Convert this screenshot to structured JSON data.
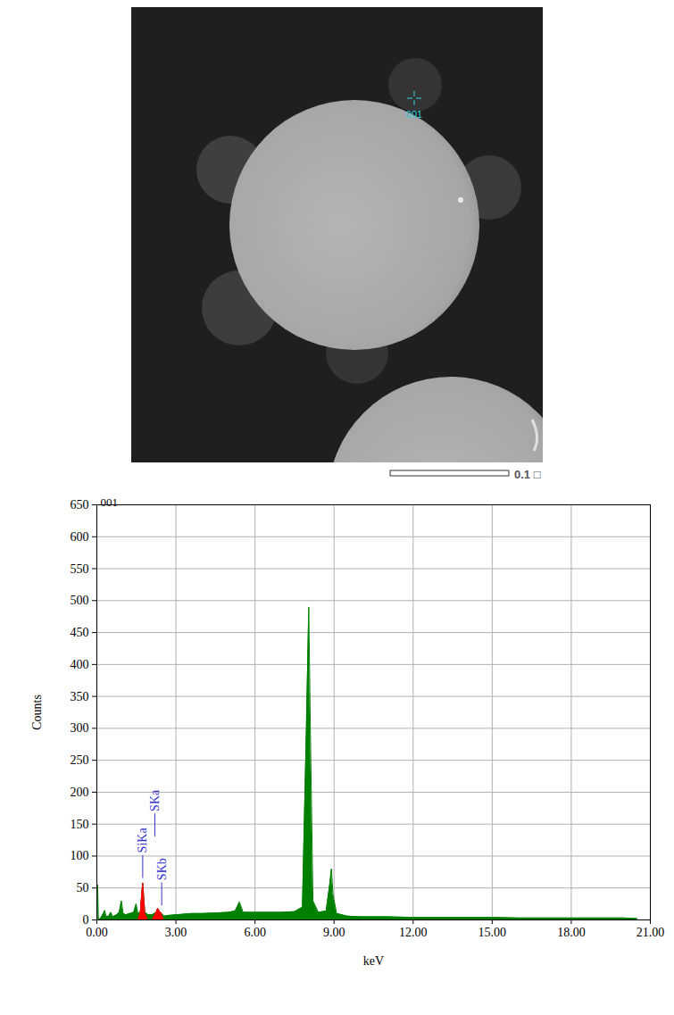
{
  "image": {
    "marker_label": "001",
    "scale_bar_label": "0.1 □"
  },
  "chart_data": {
    "type": "area",
    "title": "001",
    "x_label": "keV",
    "y_label": "Counts",
    "x": [
      0,
      0.03,
      0.06,
      0.15,
      0.25,
      0.3,
      0.35,
      0.45,
      0.53,
      0.6,
      0.75,
      0.85,
      0.93,
      1.0,
      1.1,
      1.25,
      1.4,
      1.49,
      1.56,
      1.65,
      1.74,
      1.82,
      1.95,
      2.1,
      2.25,
      2.31,
      2.4,
      2.46,
      2.55,
      2.7,
      3.0,
      3.3,
      3.6,
      4.0,
      4.5,
      5.0,
      5.25,
      5.41,
      5.55,
      6.0,
      6.5,
      7.0,
      7.5,
      7.8,
      7.95,
      8.04,
      8.1,
      8.2,
      8.4,
      8.7,
      8.85,
      8.9,
      8.96,
      9.1,
      9.5,
      10,
      11,
      12,
      13,
      14,
      15,
      16,
      17,
      18,
      19,
      20,
      20.5
    ],
    "series": [
      {
        "color": "#008000",
        "values": [
          0,
          55,
          0,
          3,
          10,
          15,
          5,
          6,
          12,
          5,
          8,
          12,
          30,
          10,
          8,
          10,
          12,
          25,
          10,
          12,
          58,
          12,
          8,
          8,
          12,
          18,
          12,
          10,
          6,
          7,
          8,
          9,
          10,
          10,
          11,
          12,
          14,
          28,
          12,
          12,
          12,
          12,
          13,
          20,
          300,
          490,
          300,
          30,
          12,
          14,
          60,
          80,
          40,
          10,
          6,
          5,
          5,
          4,
          4,
          4,
          4,
          3,
          3,
          3,
          3,
          3,
          2
        ]
      },
      {
        "color": "#ff0000",
        "values": [
          null,
          null,
          null,
          null,
          null,
          null,
          null,
          null,
          null,
          null,
          null,
          null,
          null,
          null,
          null,
          null,
          null,
          null,
          null,
          12,
          58,
          12,
          null,
          null,
          12,
          18,
          12,
          10,
          null,
          null,
          null,
          null,
          null,
          null,
          null,
          null,
          null,
          null,
          null,
          null,
          null,
          null,
          null,
          null,
          null,
          null,
          null,
          null,
          null,
          null,
          null,
          null,
          null,
          null,
          null,
          null,
          null,
          null,
          null,
          null,
          null,
          null,
          null,
          null,
          null,
          null,
          null
        ]
      }
    ],
    "annotations": [
      {
        "text": "SiKa",
        "x": 1.74,
        "y": 105,
        "color": "#3333cc"
      },
      {
        "text": "SKa",
        "x": 2.2,
        "y": 170,
        "color": "#3333cc"
      },
      {
        "text": "SKb",
        "x": 2.46,
        "y": 62,
        "color": "#3333cc"
      }
    ],
    "xlim": [
      0,
      21
    ],
    "xticks": [
      {
        "value": 0,
        "label": "0.00"
      },
      {
        "value": 3,
        "label": "3.00"
      },
      {
        "value": 6,
        "label": "6.00"
      },
      {
        "value": 9,
        "label": "9.00"
      },
      {
        "value": 12,
        "label": "12.00"
      },
      {
        "value": 15,
        "label": "15.00"
      },
      {
        "value": 18,
        "label": "18.00"
      },
      {
        "value": 21,
        "label": "21.00"
      }
    ],
    "ylim": [
      0,
      650
    ],
    "yticks": [
      0,
      50,
      100,
      150,
      200,
      250,
      300,
      350,
      400,
      450,
      500,
      550,
      600,
      650
    ],
    "grid": true
  }
}
